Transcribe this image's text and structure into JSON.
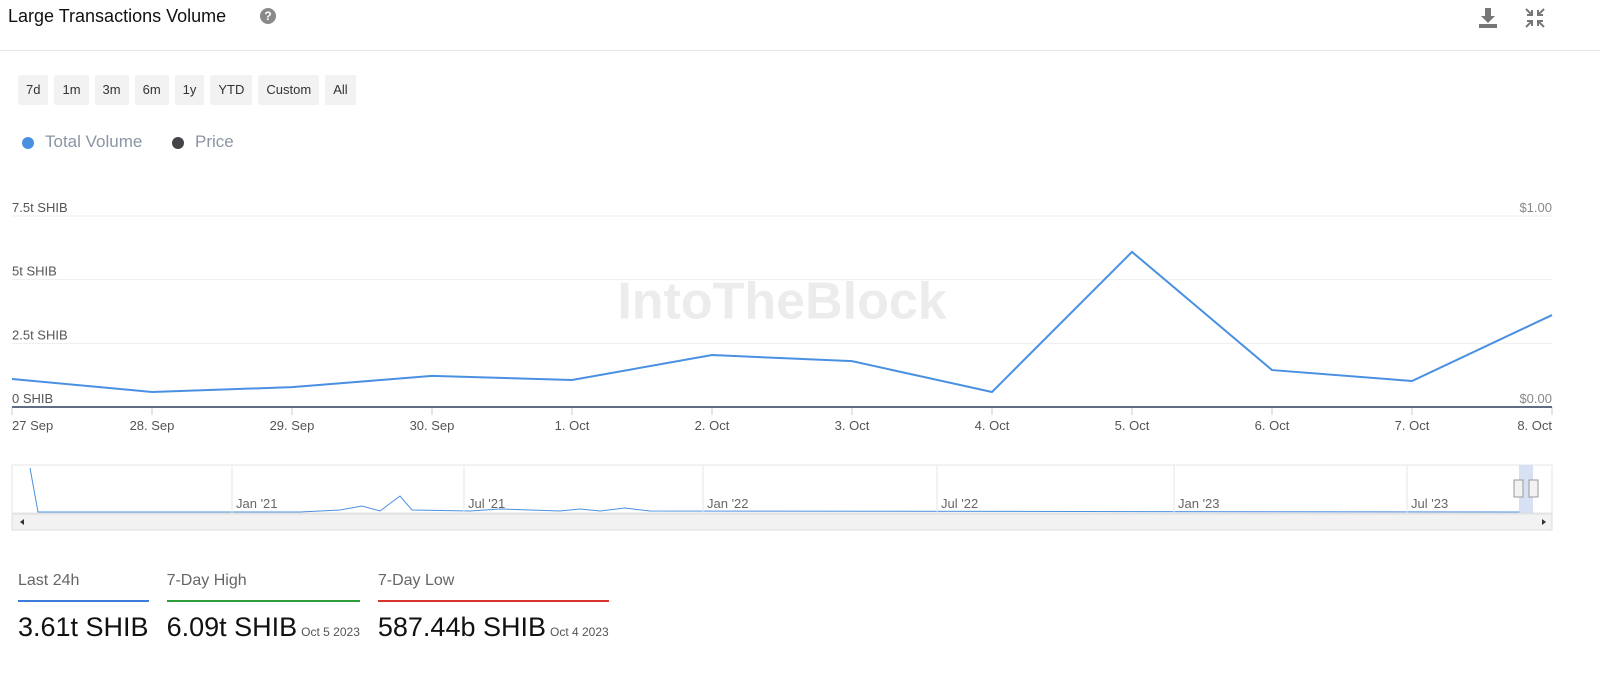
{
  "header": {
    "title": "Large Transactions Volume"
  },
  "ranges": [
    "7d",
    "1m",
    "3m",
    "6m",
    "1y",
    "YTD",
    "Custom",
    "All"
  ],
  "watermark": "IntoTheBlock",
  "chart_data": {
    "type": "line",
    "categories": [
      "27 Sep",
      "28. Sep",
      "29. Sep",
      "30. Sep",
      "1. Oct",
      "2. Oct",
      "3. Oct",
      "4. Oct",
      "5. Oct",
      "6. Oct",
      "7. Oct",
      "8. Oct"
    ],
    "series": [
      {
        "name": "Total Volume",
        "color": "#4a90e2",
        "values": [
          1.1,
          0.59,
          0.78,
          1.22,
          1.06,
          2.04,
          1.8,
          0.59,
          6.09,
          1.45,
          1.02,
          3.61
        ]
      },
      {
        "name": "Price",
        "color": "#434348",
        "axis": "y2",
        "values": [
          7.3e-06,
          7.2e-06,
          7.3e-06,
          7.5e-06,
          7.7e-06,
          7.6e-06,
          7.4e-06,
          7.4e-06,
          7.3e-06,
          7.3e-06,
          7.2e-06,
          7.2e-06
        ]
      }
    ],
    "ylim": [
      0,
      7.5
    ],
    "yticks": [
      {
        "value": 0,
        "label": "0 SHIB"
      },
      {
        "value": 2.5,
        "label": "2.5t SHIB"
      },
      {
        "value": 5,
        "label": "5t SHIB"
      },
      {
        "value": 7.5,
        "label": "7.5t SHIB"
      }
    ],
    "y2lim": [
      0,
      1
    ],
    "y2ticks": [
      {
        "value": 0,
        "label": "$0.00"
      },
      {
        "value": 1,
        "label": "$1.00"
      }
    ],
    "grid": true
  },
  "navigator": {
    "labels": [
      "Jan '21",
      "Jul '21",
      "Jan '22",
      "Jul '22",
      "Jan '23",
      "Jul '23"
    ]
  },
  "stats": [
    {
      "label": "Last 24h",
      "value": "3.61t SHIB",
      "color": "#3b7dd8"
    },
    {
      "label": "7-Day High",
      "value": "6.09t SHIB",
      "date": "Oct 5 2023",
      "color": "#2e9e3a"
    },
    {
      "label": "7-Day Low",
      "value": "587.44b SHIB",
      "date": "Oct 4 2023",
      "color": "#d9342b"
    }
  ]
}
